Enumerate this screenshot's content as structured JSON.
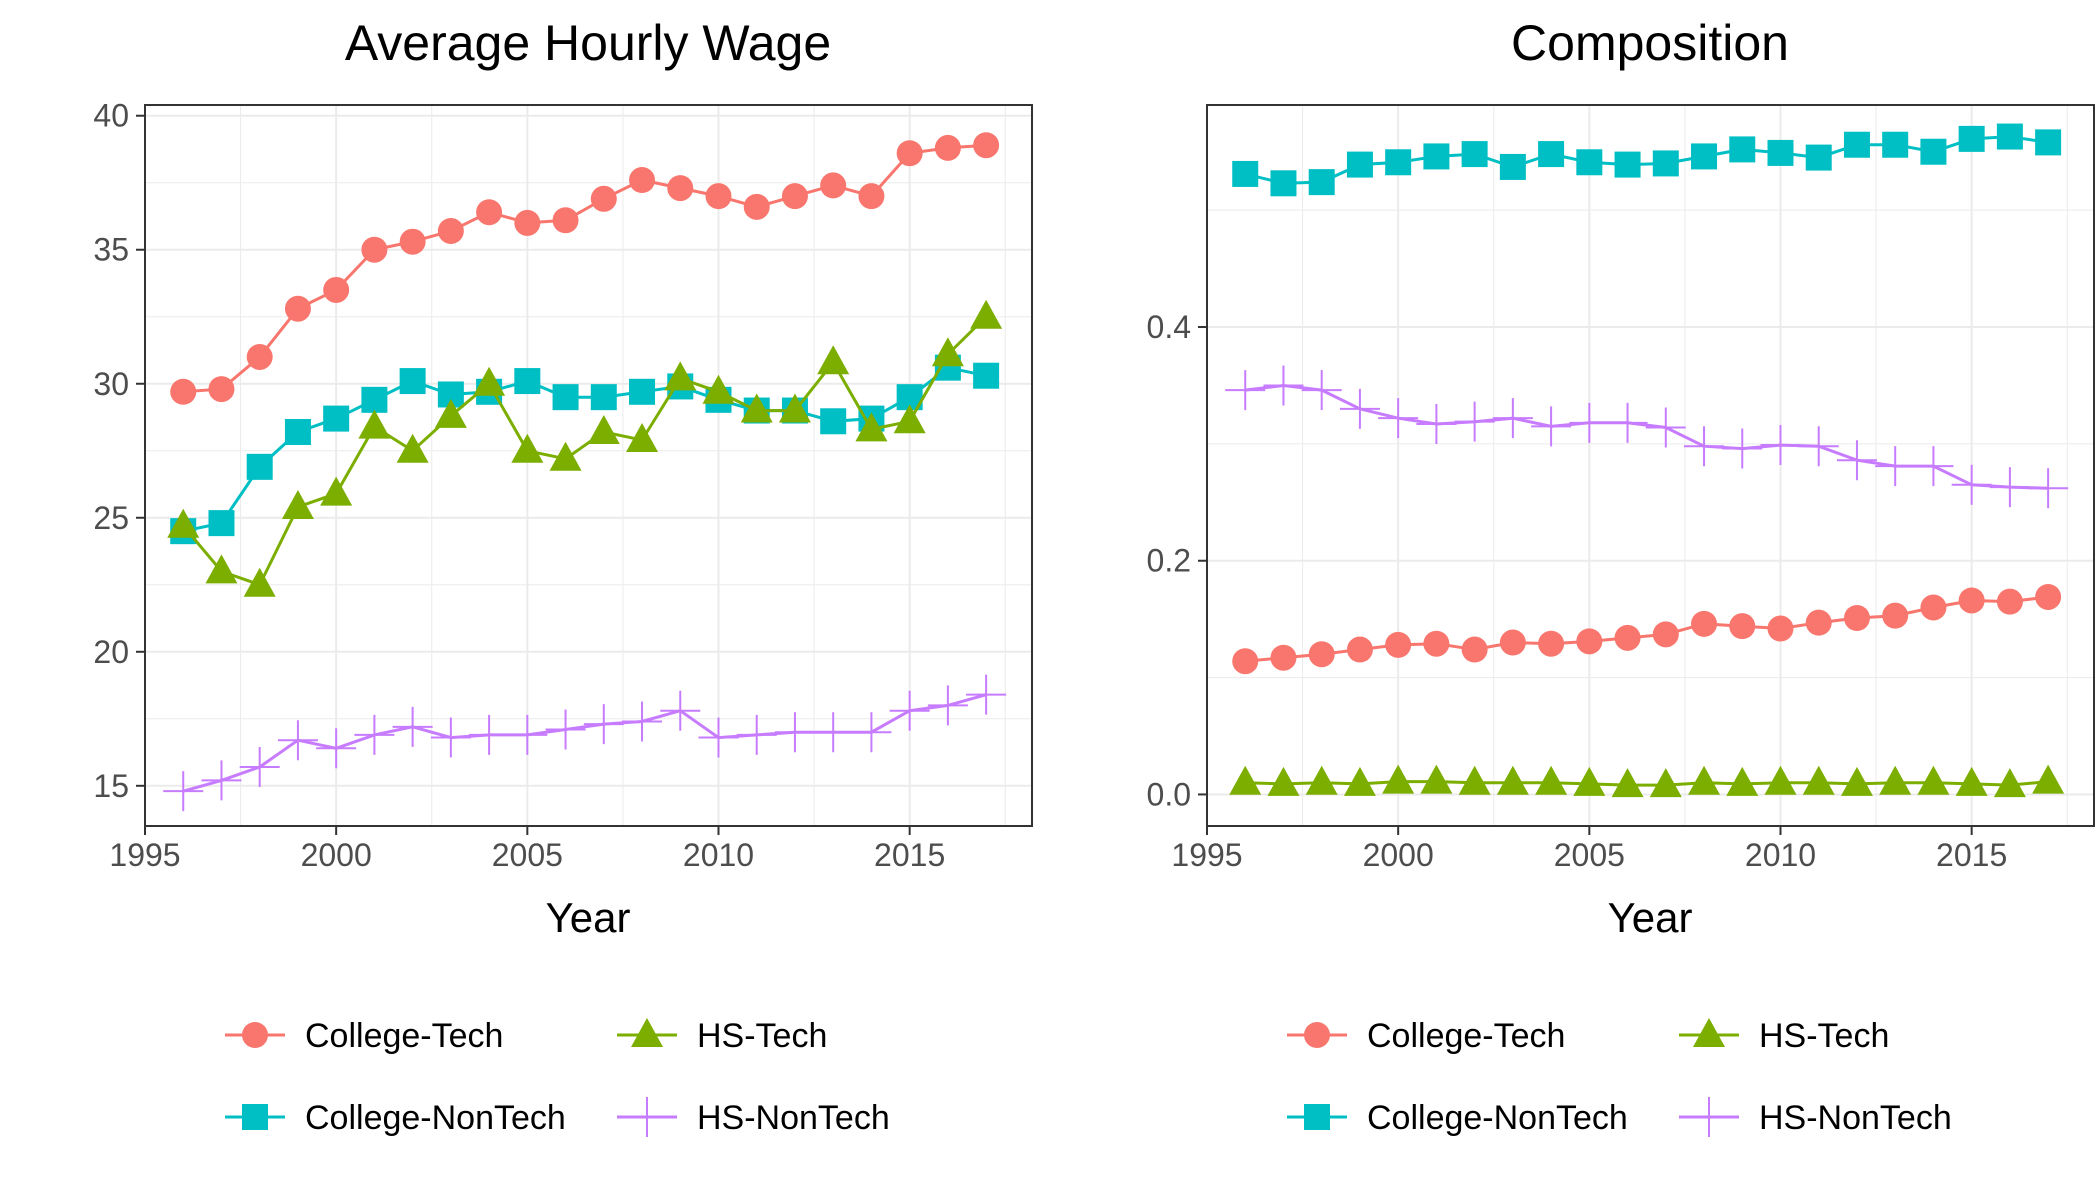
{
  "chart_data": [
    {
      "type": "line",
      "title": "Average Hourly Wage",
      "xlabel": "Year",
      "ylabel": "",
      "xlim": [
        1995,
        2018.2
      ],
      "ylim": [
        13.5,
        40.4
      ],
      "xticks": [
        1995,
        2000,
        2005,
        2010,
        2015
      ],
      "yticks": [
        15,
        20,
        25,
        30,
        35,
        40
      ],
      "x": [
        1996,
        1997,
        1998,
        1999,
        2000,
        2001,
        2002,
        2003,
        2004,
        2005,
        2006,
        2007,
        2008,
        2009,
        2010,
        2011,
        2012,
        2013,
        2014,
        2015,
        2016,
        2017
      ],
      "series": [
        {
          "name": "College-Tech",
          "color": "#F8766D",
          "marker": "circle",
          "values": [
            29.7,
            29.8,
            31.0,
            32.8,
            33.5,
            35.0,
            35.3,
            35.7,
            36.4,
            36.0,
            36.1,
            36.9,
            37.6,
            37.3,
            37.0,
            36.6,
            37.0,
            37.4,
            37.0,
            38.6,
            38.8,
            38.9
          ]
        },
        {
          "name": "College-NonTech",
          "color": "#00BFC4",
          "marker": "square",
          "values": [
            24.5,
            24.8,
            26.9,
            28.2,
            28.7,
            29.4,
            30.1,
            29.6,
            29.7,
            30.1,
            29.5,
            29.5,
            29.7,
            29.9,
            29.4,
            29.0,
            29.0,
            28.6,
            28.7,
            29.5,
            30.6,
            30.3
          ]
        },
        {
          "name": "HS-Tech",
          "color": "#7CAE00",
          "marker": "triangle",
          "values": [
            24.7,
            23.0,
            22.5,
            25.4,
            25.9,
            28.4,
            27.5,
            28.8,
            30.0,
            27.5,
            27.2,
            28.2,
            27.9,
            30.2,
            29.7,
            29.0,
            29.0,
            30.8,
            28.3,
            28.6,
            31.1,
            32.5
          ]
        },
        {
          "name": "HS-NonTech",
          "color": "#C77CFF",
          "marker": "plus",
          "values": [
            14.8,
            15.2,
            15.7,
            16.7,
            16.4,
            16.9,
            17.2,
            16.8,
            16.9,
            16.9,
            17.1,
            17.3,
            17.4,
            17.8,
            16.8,
            16.9,
            17.0,
            17.0,
            17.0,
            17.8,
            18.0,
            18.4
          ]
        }
      ],
      "grid": true,
      "legend_position": "bottom"
    },
    {
      "type": "line",
      "title": "Composition",
      "xlabel": "Year",
      "ylabel": "",
      "xlim": [
        1995,
        2018.2
      ],
      "ylim": [
        -0.027,
        0.59
      ],
      "xticks": [
        1995,
        2000,
        2005,
        2010,
        2015
      ],
      "yticks": [
        0.0,
        0.2,
        0.4
      ],
      "ytick_labels": [
        "0.0",
        "0.2",
        "0.4"
      ],
      "x": [
        1996,
        1997,
        1998,
        1999,
        2000,
        2001,
        2002,
        2003,
        2004,
        2005,
        2006,
        2007,
        2008,
        2009,
        2010,
        2011,
        2012,
        2013,
        2014,
        2015,
        2016,
        2017
      ],
      "series": [
        {
          "name": "College-Tech",
          "color": "#F8766D",
          "marker": "circle",
          "values": [
            0.114,
            0.117,
            0.12,
            0.124,
            0.128,
            0.129,
            0.124,
            0.13,
            0.129,
            0.131,
            0.134,
            0.137,
            0.146,
            0.144,
            0.142,
            0.147,
            0.151,
            0.153,
            0.16,
            0.166,
            0.165,
            0.169
          ]
        },
        {
          "name": "College-NonTech",
          "color": "#00BFC4",
          "marker": "square",
          "values": [
            0.531,
            0.523,
            0.524,
            0.539,
            0.541,
            0.546,
            0.548,
            0.537,
            0.548,
            0.541,
            0.539,
            0.54,
            0.546,
            0.552,
            0.549,
            0.545,
            0.556,
            0.556,
            0.55,
            0.561,
            0.563,
            0.558
          ]
        },
        {
          "name": "HS-Tech",
          "color": "#7CAE00",
          "marker": "triangle",
          "values": [
            0.01,
            0.009,
            0.01,
            0.009,
            0.011,
            0.011,
            0.01,
            0.01,
            0.01,
            0.009,
            0.008,
            0.008,
            0.01,
            0.009,
            0.01,
            0.01,
            0.009,
            0.01,
            0.01,
            0.009,
            0.008,
            0.011
          ]
        },
        {
          "name": "HS-NonTech",
          "color": "#C77CFF",
          "marker": "plus",
          "values": [
            0.346,
            0.35,
            0.346,
            0.33,
            0.322,
            0.317,
            0.319,
            0.322,
            0.315,
            0.318,
            0.318,
            0.314,
            0.298,
            0.296,
            0.299,
            0.298,
            0.286,
            0.281,
            0.281,
            0.265,
            0.263,
            0.262
          ]
        }
      ],
      "grid": true,
      "legend_position": "bottom"
    }
  ],
  "legends": [
    [
      "College-Tech",
      "HS-Tech",
      "College-NonTech",
      "HS-NonTech"
    ],
    [
      "College-Tech",
      "HS-Tech",
      "College-NonTech",
      "HS-NonTech"
    ]
  ]
}
